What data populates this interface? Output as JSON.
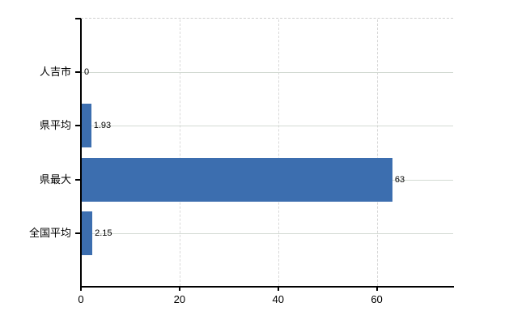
{
  "chart_data": {
    "type": "bar",
    "orientation": "horizontal",
    "title": "",
    "xlabel": "",
    "ylabel": "",
    "categories": [
      "人吉市",
      "県平均",
      "県最大",
      "全国平均"
    ],
    "values": [
      0,
      1.93,
      63,
      2.15
    ],
    "value_labels": [
      "0",
      "1.93",
      "63",
      "2.15"
    ],
    "x_ticks": [
      0,
      20,
      40,
      60
    ],
    "x_tick_labels": [
      "0",
      "20",
      "40",
      "60"
    ],
    "xlim": [
      0,
      75.5
    ],
    "grid": true,
    "legend": "none",
    "bar_color": "#3C6EAF"
  },
  "colors": {
    "background": "#ffffff",
    "bar": "#3C6EAF",
    "axis": "#000000",
    "horizontal_grid": "#d3dad3",
    "vertical_grid": "#d9d9d9",
    "top_border": "#cfcfcf",
    "text": "#000000"
  }
}
